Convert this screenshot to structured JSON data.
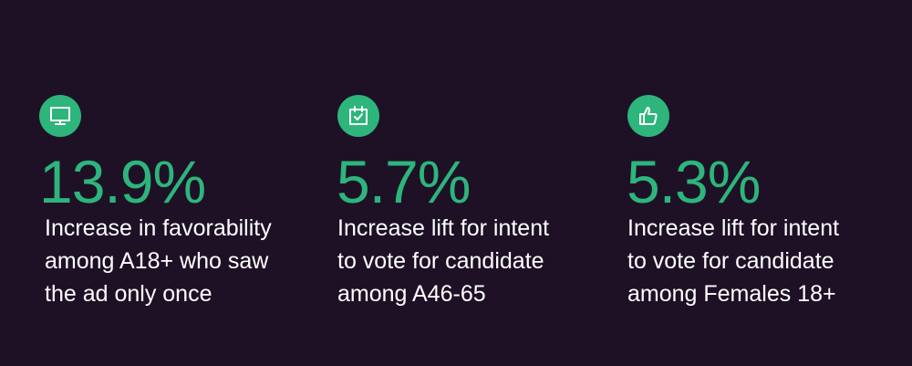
{
  "colors": {
    "background": "#1e1126",
    "accent": "#2db57c",
    "text": "#ffffff"
  },
  "stats": [
    {
      "icon": "monitor-icon",
      "value": "13.9%",
      "description": "Increase in favorability\namong A18+ who saw\nthe ad only once"
    },
    {
      "icon": "calendar-check-icon",
      "value": "5.7%",
      "description": "Increase lift for intent\nto vote for candidate\namong A46-65"
    },
    {
      "icon": "thumbs-up-icon",
      "value": "5.3%",
      "description": "Increase lift for intent\nto vote for candidate\namong Females 18+"
    }
  ]
}
